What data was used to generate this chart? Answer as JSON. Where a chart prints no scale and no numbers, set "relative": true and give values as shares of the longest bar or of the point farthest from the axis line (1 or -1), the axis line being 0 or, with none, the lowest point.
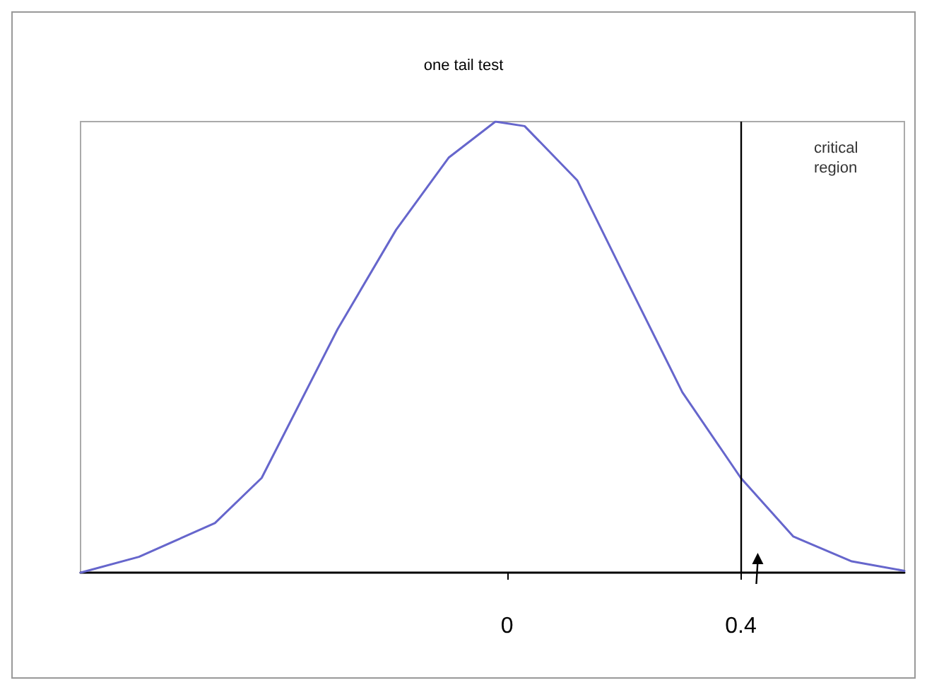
{
  "chart_data": {
    "type": "line",
    "title": "one tail test",
    "relative": true,
    "marker": "none",
    "grid": false,
    "tick_labels": "x",
    "x": [
      -0.73,
      -0.63,
      -0.5,
      -0.42,
      -0.29,
      -0.19,
      -0.1,
      -0.02,
      0.03,
      0.12,
      0.2,
      0.3,
      0.4,
      0.49,
      0.59,
      0.68
    ],
    "series": [
      {
        "color": "#6666cc",
        "values": [
          0,
          0.035,
          0.11,
          0.21,
          0.54,
          0.76,
          0.92,
          1,
          0.99,
          0.87,
          0.66,
          0.4,
          0.21,
          0.08,
          0.025,
          0.004
        ]
      }
    ],
    "xlim": [
      -0.73,
      0.68
    ],
    "xticks": [
      0,
      0.4
    ],
    "ref_lines": [
      {
        "axis": "x",
        "value": 0.4,
        "color": "#000000"
      }
    ],
    "annotations": [
      "critical region"
    ]
  }
}
